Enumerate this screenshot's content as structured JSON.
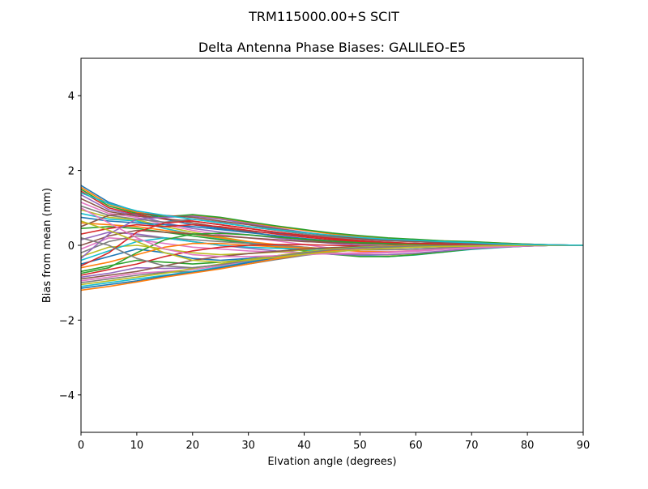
{
  "suptitle": "TRM115000.00+S  SCIT",
  "chart_data": {
    "type": "line",
    "title": "Delta Antenna Phase Biases: GALILEO-E5",
    "xlabel": "Elvation angle (degrees)",
    "ylabel": "Bias from mean (mm)",
    "xlim": [
      0,
      90
    ],
    "ylim": [
      -5,
      5
    ],
    "x_ticks": [
      0,
      10,
      20,
      30,
      40,
      50,
      60,
      70,
      80,
      90
    ],
    "y_ticks": [
      -4,
      -2,
      0,
      2,
      4
    ],
    "x_tick_labels": [
      "0",
      "10",
      "20",
      "30",
      "40",
      "50",
      "60",
      "70",
      "80",
      "90"
    ],
    "y_tick_labels": [
      "−4",
      "−2",
      "0",
      "2",
      "4"
    ],
    "grid": false,
    "legend": "none",
    "x": [
      0,
      5,
      10,
      15,
      20,
      25,
      30,
      35,
      40,
      45,
      50,
      55,
      60,
      65,
      70,
      75,
      80,
      85,
      90
    ],
    "colors": [
      "#1f77b4",
      "#ff7f0e",
      "#2ca02c",
      "#d62728",
      "#9467bd",
      "#8c564b",
      "#e377c2",
      "#7f7f7f",
      "#bcbd22",
      "#17becf"
    ],
    "series": [
      {
        "values": [
          1.6,
          1.15,
          0.9,
          0.7,
          0.55,
          0.45,
          0.38,
          0.32,
          0.25,
          0.2,
          0.17,
          0.14,
          0.12,
          0.1,
          0.08,
          0.05,
          0.03,
          0.01,
          0.0
        ]
      },
      {
        "values": [
          1.55,
          1.1,
          0.88,
          0.78,
          0.8,
          0.72,
          0.6,
          0.5,
          0.4,
          0.3,
          0.24,
          0.19,
          0.15,
          0.12,
          0.09,
          0.06,
          0.03,
          0.01,
          0.0
        ]
      },
      {
        "values": [
          1.5,
          1.05,
          0.85,
          0.76,
          0.82,
          0.75,
          0.63,
          0.52,
          0.42,
          0.33,
          0.26,
          0.2,
          0.16,
          0.12,
          0.1,
          0.06,
          0.03,
          0.01,
          0.0
        ]
      },
      {
        "values": [
          1.45,
          1.0,
          0.82,
          0.7,
          0.65,
          0.55,
          0.45,
          0.35,
          0.27,
          0.2,
          0.15,
          0.12,
          0.1,
          0.08,
          0.06,
          0.04,
          0.02,
          0.01,
          0.0
        ]
      },
      {
        "values": [
          1.35,
          0.95,
          0.8,
          0.6,
          0.45,
          0.35,
          0.28,
          0.2,
          0.12,
          0.05,
          0.0,
          -0.02,
          -0.02,
          -0.02,
          -0.01,
          0.0,
          0.0,
          0.0,
          0.0
        ]
      },
      {
        "values": [
          1.25,
          0.9,
          0.78,
          0.72,
          0.6,
          0.48,
          0.36,
          0.25,
          0.15,
          0.08,
          0.04,
          0.02,
          0.01,
          0.0,
          0.0,
          0.0,
          0.0,
          0.0,
          0.0
        ]
      },
      {
        "values": [
          1.15,
          0.85,
          0.75,
          0.55,
          0.4,
          0.28,
          0.2,
          0.12,
          0.02,
          -0.08,
          -0.12,
          -0.12,
          -0.1,
          -0.07,
          -0.05,
          -0.03,
          -0.01,
          0.0,
          0.0
        ]
      },
      {
        "values": [
          1.05,
          0.8,
          0.7,
          0.62,
          0.7,
          0.62,
          0.5,
          0.4,
          0.3,
          0.22,
          0.16,
          0.12,
          0.1,
          0.07,
          0.05,
          0.03,
          0.02,
          0.01,
          0.0
        ]
      },
      {
        "values": [
          0.95,
          0.75,
          0.68,
          0.5,
          0.35,
          0.22,
          0.1,
          0.0,
          -0.1,
          -0.2,
          -0.25,
          -0.26,
          -0.22,
          -0.16,
          -0.1,
          -0.05,
          -0.02,
          0.0,
          0.0
        ]
      },
      {
        "values": [
          0.85,
          0.7,
          0.65,
          0.45,
          0.3,
          0.18,
          0.08,
          -0.02,
          -0.12,
          -0.22,
          -0.28,
          -0.3,
          -0.26,
          -0.18,
          -0.11,
          -0.06,
          -0.02,
          0.0,
          0.0
        ]
      },
      {
        "values": [
          0.75,
          0.65,
          0.6,
          0.55,
          0.5,
          0.42,
          0.34,
          0.26,
          0.18,
          0.12,
          0.08,
          0.06,
          0.05,
          0.04,
          0.03,
          0.02,
          0.01,
          0.0,
          0.0
        ]
      },
      {
        "values": [
          0.6,
          0.55,
          0.5,
          0.4,
          0.3,
          0.2,
          0.1,
          0.02,
          -0.05,
          -0.12,
          -0.16,
          -0.17,
          -0.14,
          -0.1,
          -0.06,
          -0.03,
          -0.01,
          0.0,
          0.0
        ]
      },
      {
        "values": [
          0.45,
          0.5,
          0.45,
          0.35,
          0.25,
          0.15,
          0.05,
          -0.05,
          -0.15,
          -0.24,
          -0.3,
          -0.3,
          -0.25,
          -0.18,
          -0.1,
          -0.05,
          -0.02,
          0.0,
          0.0
        ]
      },
      {
        "values": [
          0.3,
          0.45,
          0.55,
          0.5,
          0.55,
          0.5,
          0.4,
          0.3,
          0.22,
          0.15,
          0.1,
          0.07,
          0.05,
          0.04,
          0.03,
          0.02,
          0.01,
          0.0,
          0.0
        ]
      },
      {
        "values": [
          0.15,
          0.35,
          0.3,
          0.2,
          0.1,
          0.0,
          -0.08,
          -0.15,
          -0.2,
          -0.24,
          -0.26,
          -0.25,
          -0.21,
          -0.15,
          -0.09,
          -0.05,
          -0.02,
          0.0,
          0.0
        ]
      },
      {
        "values": [
          0.0,
          0.25,
          0.4,
          0.35,
          0.3,
          0.25,
          0.2,
          0.15,
          0.1,
          0.07,
          0.05,
          0.04,
          0.03,
          0.02,
          0.02,
          0.01,
          0.0,
          0.0,
          0.0
        ]
      },
      {
        "values": [
          -0.1,
          0.2,
          0.15,
          0.05,
          -0.05,
          -0.1,
          -0.15,
          -0.18,
          -0.2,
          -0.22,
          -0.22,
          -0.2,
          -0.16,
          -0.11,
          -0.07,
          -0.04,
          -0.02,
          0.0,
          0.0
        ]
      },
      {
        "values": [
          -0.2,
          0.1,
          0.25,
          0.2,
          0.15,
          0.1,
          0.05,
          0.0,
          -0.05,
          -0.1,
          -0.12,
          -0.12,
          -0.1,
          -0.07,
          -0.04,
          -0.02,
          -0.01,
          0.0,
          0.0
        ]
      },
      {
        "values": [
          -0.3,
          -0.05,
          0.0,
          -0.1,
          -0.2,
          -0.25,
          -0.22,
          -0.18,
          -0.12,
          -0.08,
          -0.05,
          -0.03,
          -0.02,
          -0.01,
          -0.01,
          0.0,
          0.0,
          0.0,
          0.0
        ]
      },
      {
        "values": [
          -0.4,
          -0.15,
          0.1,
          0.2,
          0.1,
          0.0,
          -0.05,
          -0.08,
          -0.1,
          -0.1,
          -0.08,
          -0.06,
          -0.05,
          -0.03,
          -0.02,
          -0.01,
          0.0,
          0.0,
          0.0
        ]
      },
      {
        "values": [
          -0.5,
          -0.3,
          -0.1,
          -0.2,
          -0.35,
          -0.4,
          -0.35,
          -0.28,
          -0.2,
          -0.14,
          -0.1,
          -0.07,
          -0.05,
          -0.03,
          -0.02,
          -0.01,
          0.0,
          0.0,
          0.0
        ]
      },
      {
        "values": [
          -0.6,
          -0.45,
          -0.25,
          -0.05,
          0.05,
          0.05,
          0.0,
          -0.04,
          -0.07,
          -0.08,
          -0.07,
          -0.06,
          -0.04,
          -0.03,
          -0.02,
          -0.01,
          0.0,
          0.0,
          0.0
        ]
      },
      {
        "values": [
          -0.7,
          -0.55,
          -0.4,
          -0.45,
          -0.5,
          -0.45,
          -0.38,
          -0.3,
          -0.22,
          -0.15,
          -0.1,
          -0.06,
          -0.04,
          -0.02,
          -0.01,
          0.0,
          0.0,
          0.0,
          0.0
        ]
      },
      {
        "values": [
          -0.8,
          -0.65,
          -0.5,
          -0.3,
          -0.15,
          -0.05,
          0.0,
          0.02,
          0.02,
          0.0,
          -0.02,
          -0.03,
          -0.03,
          -0.02,
          -0.01,
          -0.01,
          0.0,
          0.0,
          0.0
        ]
      },
      {
        "values": [
          -0.85,
          -0.75,
          -0.6,
          -0.62,
          -0.6,
          -0.52,
          -0.42,
          -0.32,
          -0.22,
          -0.14,
          -0.08,
          -0.04,
          -0.02,
          -0.01,
          0.0,
          0.0,
          0.0,
          0.0,
          0.0
        ]
      },
      {
        "values": [
          -0.9,
          -0.8,
          -0.7,
          -0.55,
          -0.4,
          -0.3,
          -0.22,
          -0.16,
          -0.1,
          -0.06,
          -0.03,
          -0.02,
          -0.01,
          0.0,
          0.0,
          0.0,
          0.0,
          0.0,
          0.0
        ]
      },
      {
        "values": [
          -0.95,
          -0.85,
          -0.75,
          -0.7,
          -0.65,
          -0.55,
          -0.45,
          -0.35,
          -0.25,
          -0.16,
          -0.1,
          -0.06,
          -0.03,
          -0.02,
          -0.01,
          0.0,
          0.0,
          0.0,
          0.0
        ]
      },
      {
        "values": [
          -1.0,
          -0.9,
          -0.8,
          -0.72,
          -0.7,
          -0.62,
          -0.5,
          -0.38,
          -0.27,
          -0.18,
          -0.12,
          -0.07,
          -0.04,
          -0.02,
          -0.01,
          0.0,
          0.0,
          0.0,
          0.0
        ]
      },
      {
        "values": [
          -1.05,
          -0.95,
          -0.85,
          -0.75,
          -0.62,
          -0.5,
          -0.38,
          -0.28,
          -0.18,
          -0.1,
          -0.05,
          -0.02,
          0.0,
          0.0,
          0.0,
          0.0,
          0.0,
          0.0,
          0.0
        ]
      },
      {
        "values": [
          -1.1,
          -1.0,
          -0.9,
          -0.8,
          -0.7,
          -0.58,
          -0.45,
          -0.32,
          -0.2,
          -0.12,
          -0.06,
          -0.03,
          -0.01,
          0.0,
          0.0,
          0.0,
          0.0,
          0.0,
          0.0
        ]
      },
      {
        "values": [
          -1.15,
          -1.05,
          -0.95,
          -0.82,
          -0.72,
          -0.6,
          -0.46,
          -0.33,
          -0.22,
          -0.13,
          -0.07,
          -0.03,
          -0.01,
          0.0,
          0.0,
          0.0,
          0.0,
          0.0,
          0.0
        ]
      },
      {
        "values": [
          -1.2,
          -1.1,
          -0.98,
          -0.85,
          -0.74,
          -0.63,
          -0.5,
          -0.36,
          -0.24,
          -0.14,
          -0.07,
          -0.03,
          -0.01,
          0.0,
          0.0,
          0.0,
          0.0,
          0.0,
          0.0
        ]
      },
      {
        "values": [
          -0.75,
          -0.6,
          -0.2,
          0.15,
          0.3,
          0.32,
          0.28,
          0.22,
          0.16,
          0.11,
          0.07,
          0.05,
          0.03,
          0.02,
          0.01,
          0.01,
          0.0,
          0.0,
          0.0
        ]
      },
      {
        "values": [
          -0.55,
          -0.2,
          0.35,
          0.6,
          0.65,
          0.55,
          0.45,
          0.35,
          0.26,
          0.18,
          0.12,
          0.08,
          0.05,
          0.03,
          0.02,
          0.01,
          0.0,
          0.0,
          0.0
        ]
      },
      {
        "values": [
          -0.35,
          0.3,
          0.7,
          0.75,
          0.78,
          0.7,
          0.58,
          0.46,
          0.35,
          0.25,
          0.18,
          0.13,
          0.1,
          0.07,
          0.05,
          0.03,
          0.01,
          0.0,
          0.0
        ]
      },
      {
        "values": [
          0.5,
          0.8,
          0.85,
          0.8,
          0.75,
          0.65,
          0.55,
          0.44,
          0.34,
          0.25,
          0.18,
          0.13,
          0.1,
          0.07,
          0.05,
          0.03,
          0.01,
          0.0,
          0.0
        ]
      },
      {
        "values": [
          1.0,
          0.6,
          0.2,
          -0.1,
          -0.25,
          -0.3,
          -0.3,
          -0.28,
          -0.25,
          -0.22,
          -0.2,
          -0.18,
          -0.14,
          -0.1,
          -0.06,
          -0.03,
          -0.01,
          0.0,
          0.0
        ]
      },
      {
        "values": [
          0.2,
          0.0,
          -0.35,
          -0.55,
          -0.6,
          -0.52,
          -0.4,
          -0.3,
          -0.2,
          -0.12,
          -0.07,
          -0.04,
          -0.02,
          -0.01,
          0.0,
          0.0,
          0.0,
          0.0,
          0.0
        ]
      },
      {
        "values": [
          0.65,
          0.4,
          0.1,
          -0.2,
          -0.4,
          -0.45,
          -0.4,
          -0.32,
          -0.24,
          -0.17,
          -0.12,
          -0.08,
          -0.05,
          -0.03,
          -0.02,
          -0.01,
          0.0,
          0.0,
          0.0
        ]
      },
      {
        "values": [
          1.4,
          1.12,
          0.92,
          0.8,
          0.7,
          0.6,
          0.5,
          0.42,
          0.34,
          0.27,
          0.21,
          0.16,
          0.13,
          0.1,
          0.07,
          0.04,
          0.02,
          0.01,
          0.0
        ]
      }
    ]
  }
}
